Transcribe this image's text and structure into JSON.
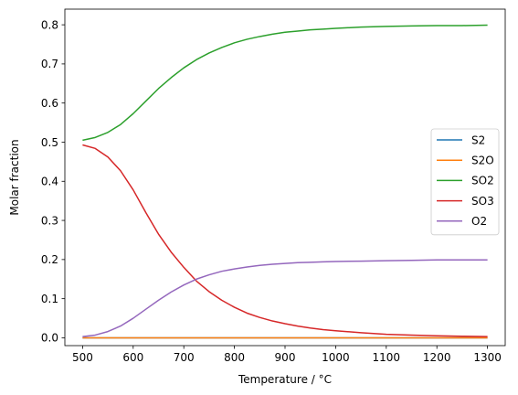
{
  "chart_data": {
    "type": "line",
    "xlabel": "Temperature / °C",
    "ylabel": "Molar fraction",
    "xlim": [
      465,
      1335
    ],
    "ylim": [
      -0.02,
      0.84
    ],
    "xticks": [
      500,
      600,
      700,
      800,
      900,
      1000,
      1100,
      1200,
      1300
    ],
    "yticks": [
      0.0,
      0.1,
      0.2,
      0.3,
      0.4,
      0.5,
      0.6,
      0.7,
      0.8
    ],
    "grid": false,
    "legend_position": "center-right",
    "x": [
      500,
      525,
      550,
      575,
      600,
      625,
      650,
      675,
      700,
      725,
      750,
      775,
      800,
      825,
      850,
      875,
      900,
      925,
      950,
      975,
      1000,
      1050,
      1100,
      1150,
      1200,
      1250,
      1300
    ],
    "series": [
      {
        "name": "S2",
        "color": "#1f77b4",
        "values": [
          0,
          0,
          0,
          0,
          0,
          0,
          0,
          0,
          0,
          0,
          0,
          0,
          0,
          0,
          0,
          0,
          0,
          0,
          0,
          0,
          0,
          0,
          0,
          0,
          0,
          0,
          0
        ]
      },
      {
        "name": "S2O",
        "color": "#ff7f0e",
        "values": [
          0,
          0,
          0,
          0,
          0,
          0,
          0,
          0,
          0,
          0,
          0,
          0,
          0,
          0,
          0,
          0,
          0,
          0,
          0,
          0,
          0,
          0,
          0,
          0,
          0,
          0,
          0
        ]
      },
      {
        "name": "SO2",
        "color": "#2ca02c",
        "values": [
          0.505,
          0.512,
          0.525,
          0.545,
          0.573,
          0.605,
          0.637,
          0.665,
          0.69,
          0.711,
          0.728,
          0.742,
          0.754,
          0.763,
          0.77,
          0.776,
          0.781,
          0.784,
          0.787,
          0.789,
          0.791,
          0.794,
          0.796,
          0.797,
          0.798,
          0.798,
          0.799
        ]
      },
      {
        "name": "SO3",
        "color": "#d62728",
        "values": [
          0.493,
          0.484,
          0.462,
          0.427,
          0.378,
          0.32,
          0.265,
          0.219,
          0.18,
          0.145,
          0.118,
          0.096,
          0.078,
          0.063,
          0.052,
          0.043,
          0.036,
          0.03,
          0.025,
          0.021,
          0.018,
          0.013,
          0.009,
          0.007,
          0.005,
          0.004,
          0.003
        ]
      },
      {
        "name": "O2",
        "color": "#9467bd",
        "values": [
          0.003,
          0.007,
          0.016,
          0.03,
          0.05,
          0.073,
          0.096,
          0.117,
          0.135,
          0.15,
          0.161,
          0.17,
          0.176,
          0.181,
          0.185,
          0.188,
          0.19,
          0.192,
          0.193,
          0.194,
          0.195,
          0.196,
          0.197,
          0.198,
          0.199,
          0.199,
          0.199
        ]
      }
    ]
  }
}
